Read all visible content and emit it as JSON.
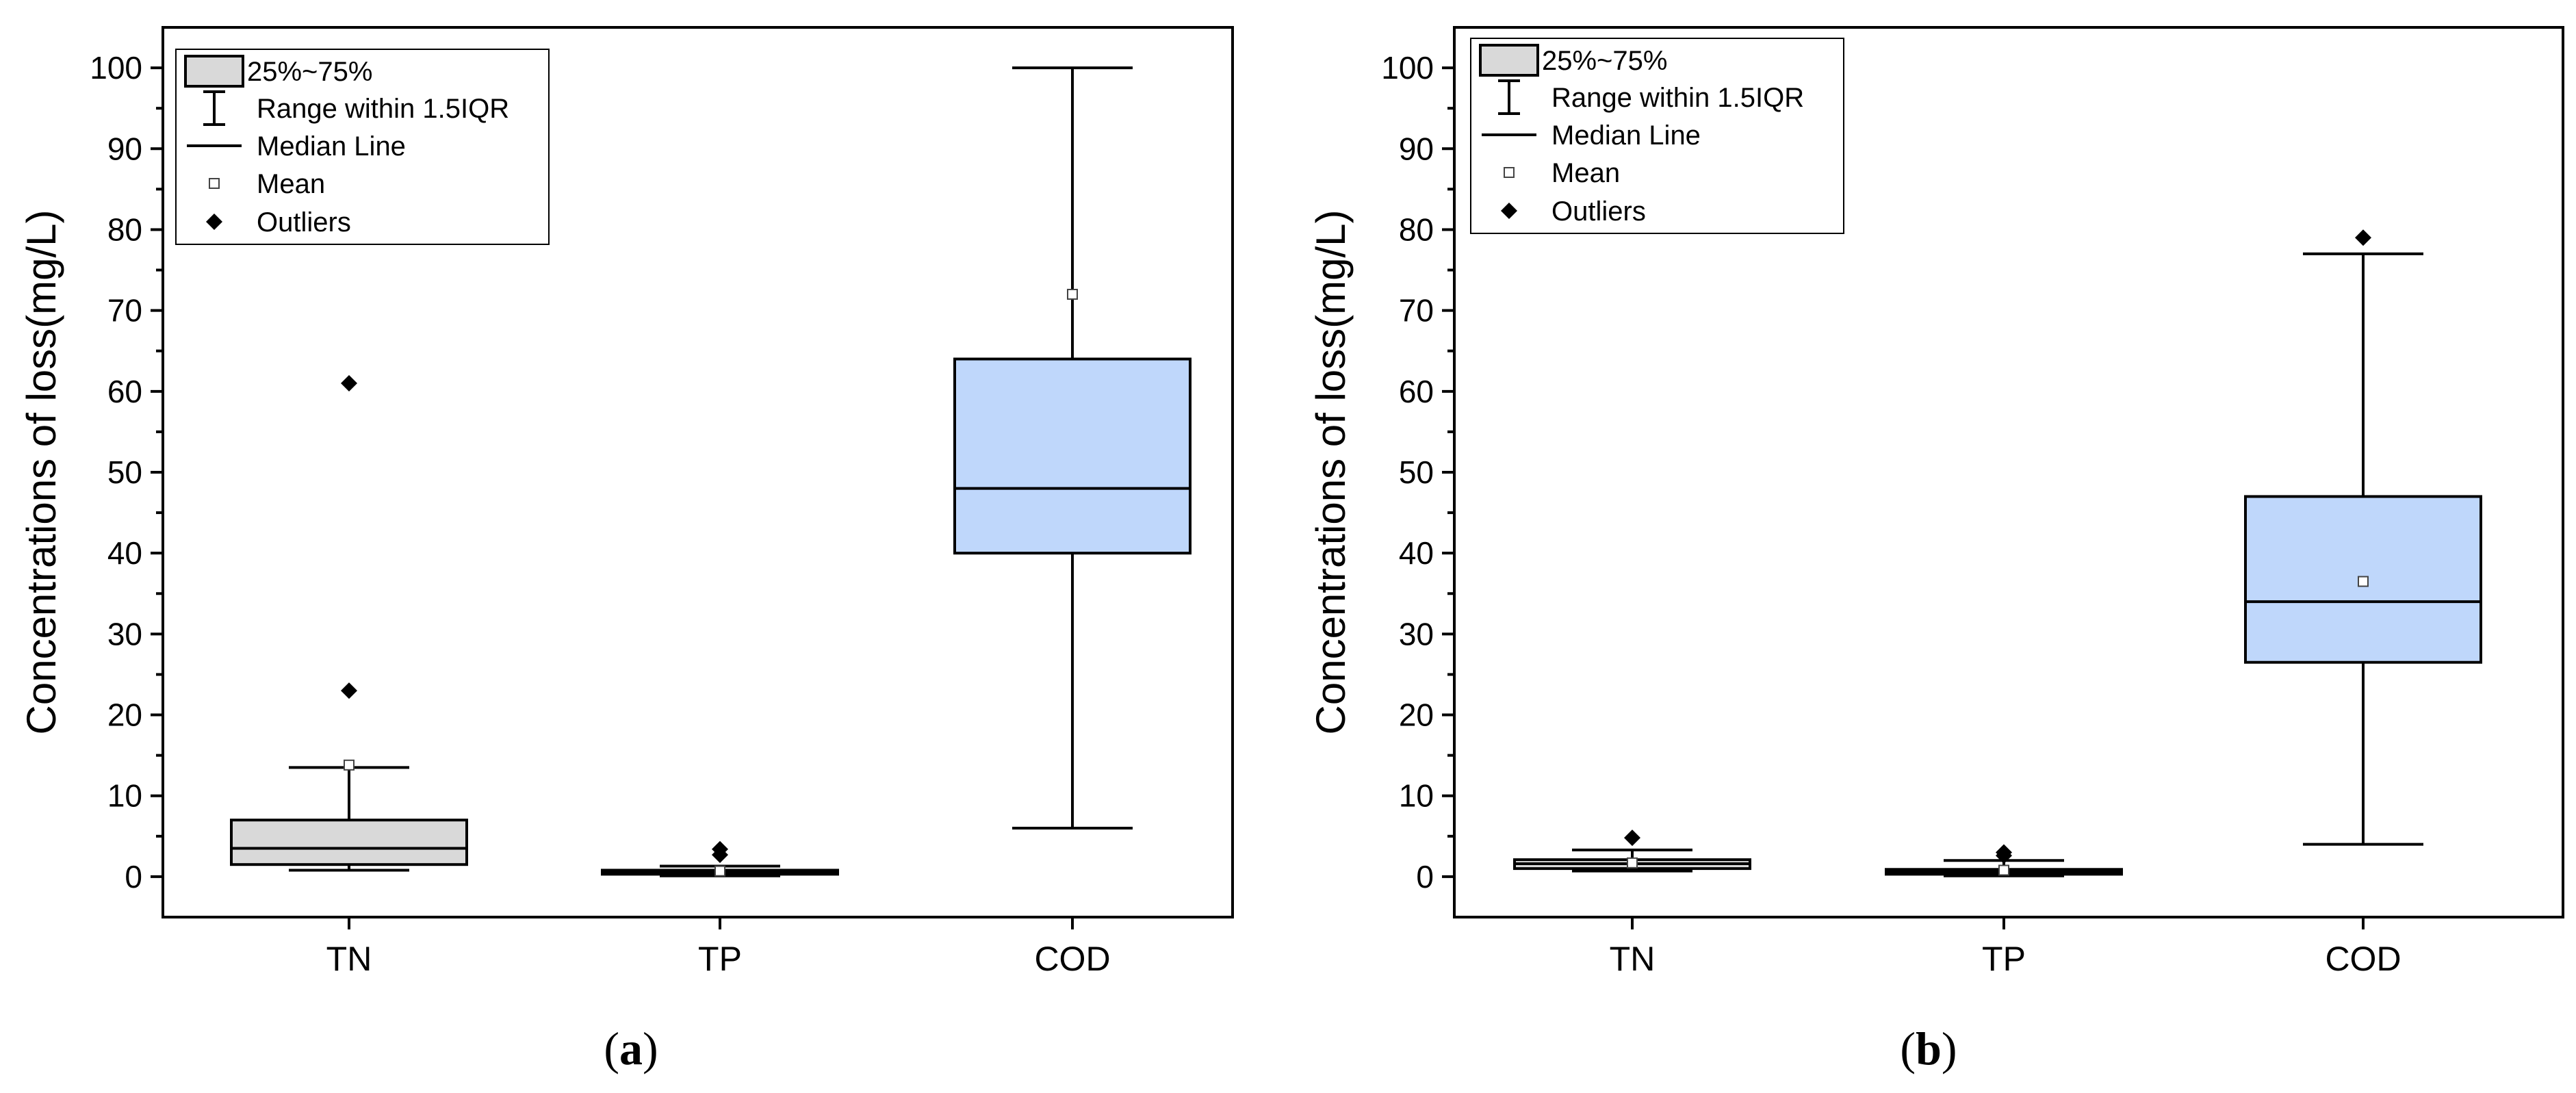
{
  "chart_data": [
    {
      "type": "box",
      "panel_label": "a",
      "ylabel": "Concentrations of loss(mg/L)",
      "ylim": [
        -5,
        105
      ],
      "yticks": [
        0,
        10,
        20,
        30,
        40,
        50,
        60,
        70,
        80,
        90,
        100
      ],
      "categories": [
        "TN",
        "TP",
        "COD"
      ],
      "legend": {
        "position": "top-left",
        "entries": [
          "25%~75%",
          "Range within 1.5IQR",
          "Median Line",
          "Mean",
          "Outliers"
        ]
      },
      "boxes": [
        {
          "category": "TN",
          "whisker_low": 0.8,
          "q1": 1.5,
          "median": 3.5,
          "q3": 7,
          "whisker_high": 13.5,
          "mean": 13.8,
          "outliers": [
            23,
            61
          ],
          "fill": "#d9d9d9"
        },
        {
          "category": "TP",
          "whisker_low": 0.1,
          "q1": 0.3,
          "median": 0.5,
          "q3": 0.8,
          "whisker_high": 1.3,
          "mean": 0.7,
          "outliers": [
            2.7,
            3.4
          ],
          "fill": "#d9d9d9"
        },
        {
          "category": "COD",
          "whisker_low": 6,
          "q1": 40,
          "median": 48,
          "q3": 64,
          "whisker_high": 100,
          "mean": 72,
          "outliers": [],
          "fill": "#bfd7fb"
        }
      ]
    },
    {
      "type": "box",
      "panel_label": "b",
      "ylabel": "Concentrations of loss(mg/L)",
      "ylim": [
        -5,
        105
      ],
      "yticks": [
        0,
        10,
        20,
        30,
        40,
        50,
        60,
        70,
        80,
        90,
        100
      ],
      "categories": [
        "TN",
        "TP",
        "COD"
      ],
      "legend": {
        "position": "top-left",
        "entries": [
          "25%~75%",
          "Range within 1.5IQR",
          "Median Line",
          "Mean",
          "Outliers"
        ]
      },
      "boxes": [
        {
          "category": "TN",
          "whisker_low": 0.7,
          "q1": 1.0,
          "median": 1.6,
          "q3": 2.1,
          "whisker_high": 3.3,
          "mean": 1.7,
          "outliers": [
            4.8
          ],
          "fill": "#d9d9d9"
        },
        {
          "category": "TP",
          "whisker_low": 0.1,
          "q1": 0.3,
          "median": 0.6,
          "q3": 0.9,
          "whisker_high": 2.0,
          "mean": 0.8,
          "outliers": [
            2.6,
            3.0
          ],
          "fill": "#d9d9d9"
        },
        {
          "category": "COD",
          "whisker_low": 4,
          "q1": 26.5,
          "median": 34,
          "q3": 47,
          "whisker_high": 77,
          "mean": 36.5,
          "outliers": [
            79
          ],
          "fill": "#bfd7fb"
        }
      ]
    }
  ]
}
